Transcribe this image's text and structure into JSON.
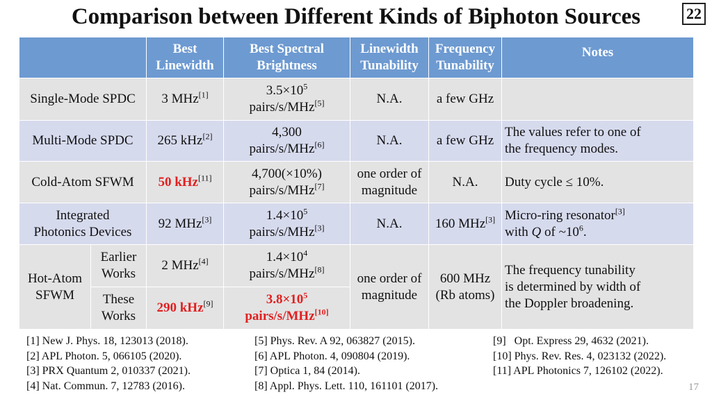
{
  "slide_title": "Comparison between Different Kinds of Biphoton Sources",
  "slide_number": "22",
  "page_number": "17",
  "headers": {
    "best_linewidth": [
      "Best",
      "Linewidth"
    ],
    "best_brightness": [
      "Best Spectral",
      "Brightness"
    ],
    "linewidth_tunability": [
      "Linewidth",
      "Tunability"
    ],
    "frequency_tunability": [
      "Frequency",
      "Tunability"
    ],
    "notes": "Notes"
  },
  "rows": {
    "single_spdc": {
      "name": "Single-Mode SPDC",
      "linewidth": "3 MHz",
      "linewidth_ref": "[1]",
      "brightness_l1": "3.5×10",
      "brightness_l1_exp": "5",
      "brightness_l2": "pairs/s/MHz",
      "brightness_ref": "[5]",
      "linewidth_tunability": "N.A.",
      "frequency_tunability": "a few GHz",
      "notes": ""
    },
    "multi_spdc": {
      "name": "Multi-Mode SPDC",
      "linewidth": "265 kHz",
      "linewidth_ref": "[2]",
      "brightness_l1": "4,300",
      "brightness_l2": "pairs/s/MHz",
      "brightness_ref": "[6]",
      "linewidth_tunability": "N.A.",
      "frequency_tunability": "a few GHz",
      "notes_l1": "The values refer to one of",
      "notes_l2": "the frequency modes."
    },
    "cold_atom": {
      "name": "Cold-Atom SFWM",
      "linewidth": "50 kHz",
      "linewidth_ref": "[11]",
      "brightness_l1": "4,700(×10%)",
      "brightness_l2": "pairs/s/MHz",
      "brightness_ref": "[7]",
      "linewidth_tunability_l1": "one order of",
      "linewidth_tunability_l2": "magnitude",
      "frequency_tunability": "N.A.",
      "notes": "Duty cycle ≤ 10%."
    },
    "integrated": {
      "name_l1": "Integrated",
      "name_l2": "Photonics Devices",
      "linewidth": "92 MHz",
      "linewidth_ref": "[3]",
      "brightness_l1": "1.4×10",
      "brightness_l1_exp": "5",
      "brightness_l2": "pairs/s/MHz",
      "brightness_ref": "[3]",
      "linewidth_tunability": "N.A.",
      "frequency_tunability": "160 MHz",
      "frequency_tunability_ref": "[3]",
      "notes_l1": "Micro-ring resonator",
      "notes_l1_ref": "[3]",
      "notes_l2_pre": "with ",
      "notes_l2_q": "Q",
      "notes_l2_mid": " of ~10",
      "notes_l2_exp": "6",
      "notes_l2_post": "."
    },
    "hot_atom": {
      "name_l1": "Hot-Atom",
      "name_l2": "SFWM",
      "earlier": {
        "sub_l1": "Earlier",
        "sub_l2": "Works",
        "linewidth": "2 MHz",
        "linewidth_ref": "[4]",
        "brightness_l1": "1.4×10",
        "brightness_l1_exp": "4",
        "brightness_l2": "pairs/s/MHz",
        "brightness_ref": "[8]"
      },
      "these": {
        "sub_l1": "These",
        "sub_l2": "Works",
        "linewidth": "290 kHz",
        "linewidth_ref": "[9]",
        "brightness_l1": "3.8×10",
        "brightness_l1_exp": "5",
        "brightness_l2": "pairs/s/MHz",
        "brightness_ref": "[10]"
      },
      "linewidth_tunability_l1": "one order of",
      "linewidth_tunability_l2": "magnitude",
      "frequency_tunability_l1": "600 MHz",
      "frequency_tunability_l2": "(Rb atoms)",
      "notes_l1": "The frequency tunability",
      "notes_l2": "is determined by width of",
      "notes_l3": "the Doppler broadening."
    }
  },
  "references": {
    "col1": [
      "[1] New J. Phys. 18, 123013 (2018).",
      "[2] APL Photon. 5, 066105 (2020).",
      "[3] PRX Quantum 2, 010337 (2021).",
      "[4] Nat. Commun. 7, 12783 (2016)."
    ],
    "col2": [
      "[5] Phys. Rev. A 92, 063827 (2015).",
      "[6] APL Photon. 4, 090804 (2019).",
      "[7] Optica 1, 84 (2014).",
      "[8] Appl. Phys. Lett. 110, 161101 (2017)."
    ],
    "col3": [
      "[9]   Opt. Express 29, 4632 (2021).",
      "[10] Phys. Rev. Res. 4, 023132 (2022).",
      "[11] APL Photonics 7, 126102 (2022)."
    ]
  },
  "colors": {
    "header_bg": "#6d9ad1",
    "row_gray": "#e3e3e3",
    "row_lavender": "#d6daed",
    "highlight_red": "#e02020"
  }
}
